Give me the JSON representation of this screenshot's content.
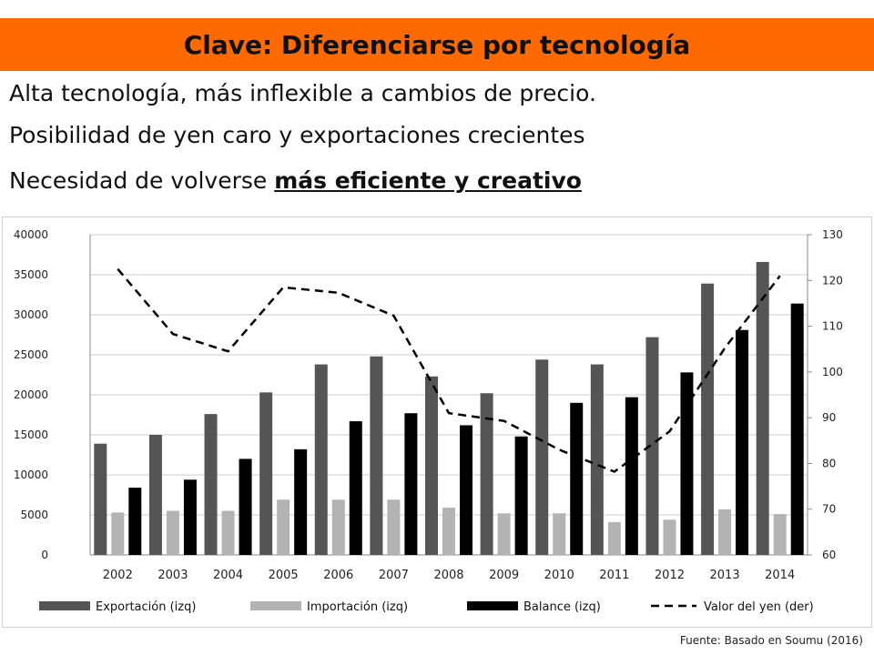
{
  "slide": {
    "title": "Clave: Diferenciarse por tecnología",
    "line1": "Alta tecnología, más inflexible a cambios de precio.",
    "line2": "Posibilidad de yen caro y exportaciones crecientes",
    "line3_prefix": "Necesidad de volverse ",
    "line3_emphasis": "más eficiente y creativo",
    "source": "Fuente: Basado en Soumu (2016)"
  },
  "colors": {
    "title_bar": "#ff6a00",
    "exportacion": "#555555",
    "importacion": "#b3b3b3",
    "balance": "#000000",
    "yen": "#000000"
  },
  "chart_data": {
    "type": "bar",
    "categories": [
      "2002",
      "2003",
      "2004",
      "2005",
      "2006",
      "2007",
      "2008",
      "2009",
      "2010",
      "2011",
      "2012",
      "2013",
      "2014"
    ],
    "ylim": [
      0,
      40000
    ],
    "y_ticks": [
      0,
      5000,
      10000,
      15000,
      20000,
      25000,
      30000,
      35000,
      40000
    ],
    "y2lim": [
      60,
      130
    ],
    "y2_ticks": [
      60,
      70,
      80,
      90,
      100,
      110,
      120,
      130
    ],
    "grid": true,
    "legend_position": "bottom",
    "series": [
      {
        "name": "Exportación (izq)",
        "type": "bar",
        "axis": "left",
        "values": [
          13900,
          15000,
          17600,
          20300,
          23800,
          24800,
          22300,
          20200,
          24400,
          23800,
          27200,
          33900,
          36600
        ]
      },
      {
        "name": "Importación (izq)",
        "type": "bar",
        "axis": "left",
        "values": [
          5300,
          5500,
          5500,
          6900,
          6900,
          6900,
          5900,
          5200,
          5200,
          4100,
          4400,
          5700,
          5100
        ]
      },
      {
        "name": "Balance (izq)",
        "type": "bar",
        "axis": "left",
        "values": [
          8400,
          9400,
          12000,
          13200,
          16700,
          17700,
          16200,
          14800,
          19000,
          19700,
          22800,
          28100,
          31400
        ]
      },
      {
        "name": "Valor del yen (der)",
        "type": "line",
        "style": "dashed",
        "axis": "right",
        "values": [
          122.5,
          108.3,
          104.5,
          118.5,
          117.3,
          112.3,
          91.0,
          89.3,
          83.0,
          78.2,
          87.0,
          105.2,
          121.0
        ]
      }
    ]
  }
}
